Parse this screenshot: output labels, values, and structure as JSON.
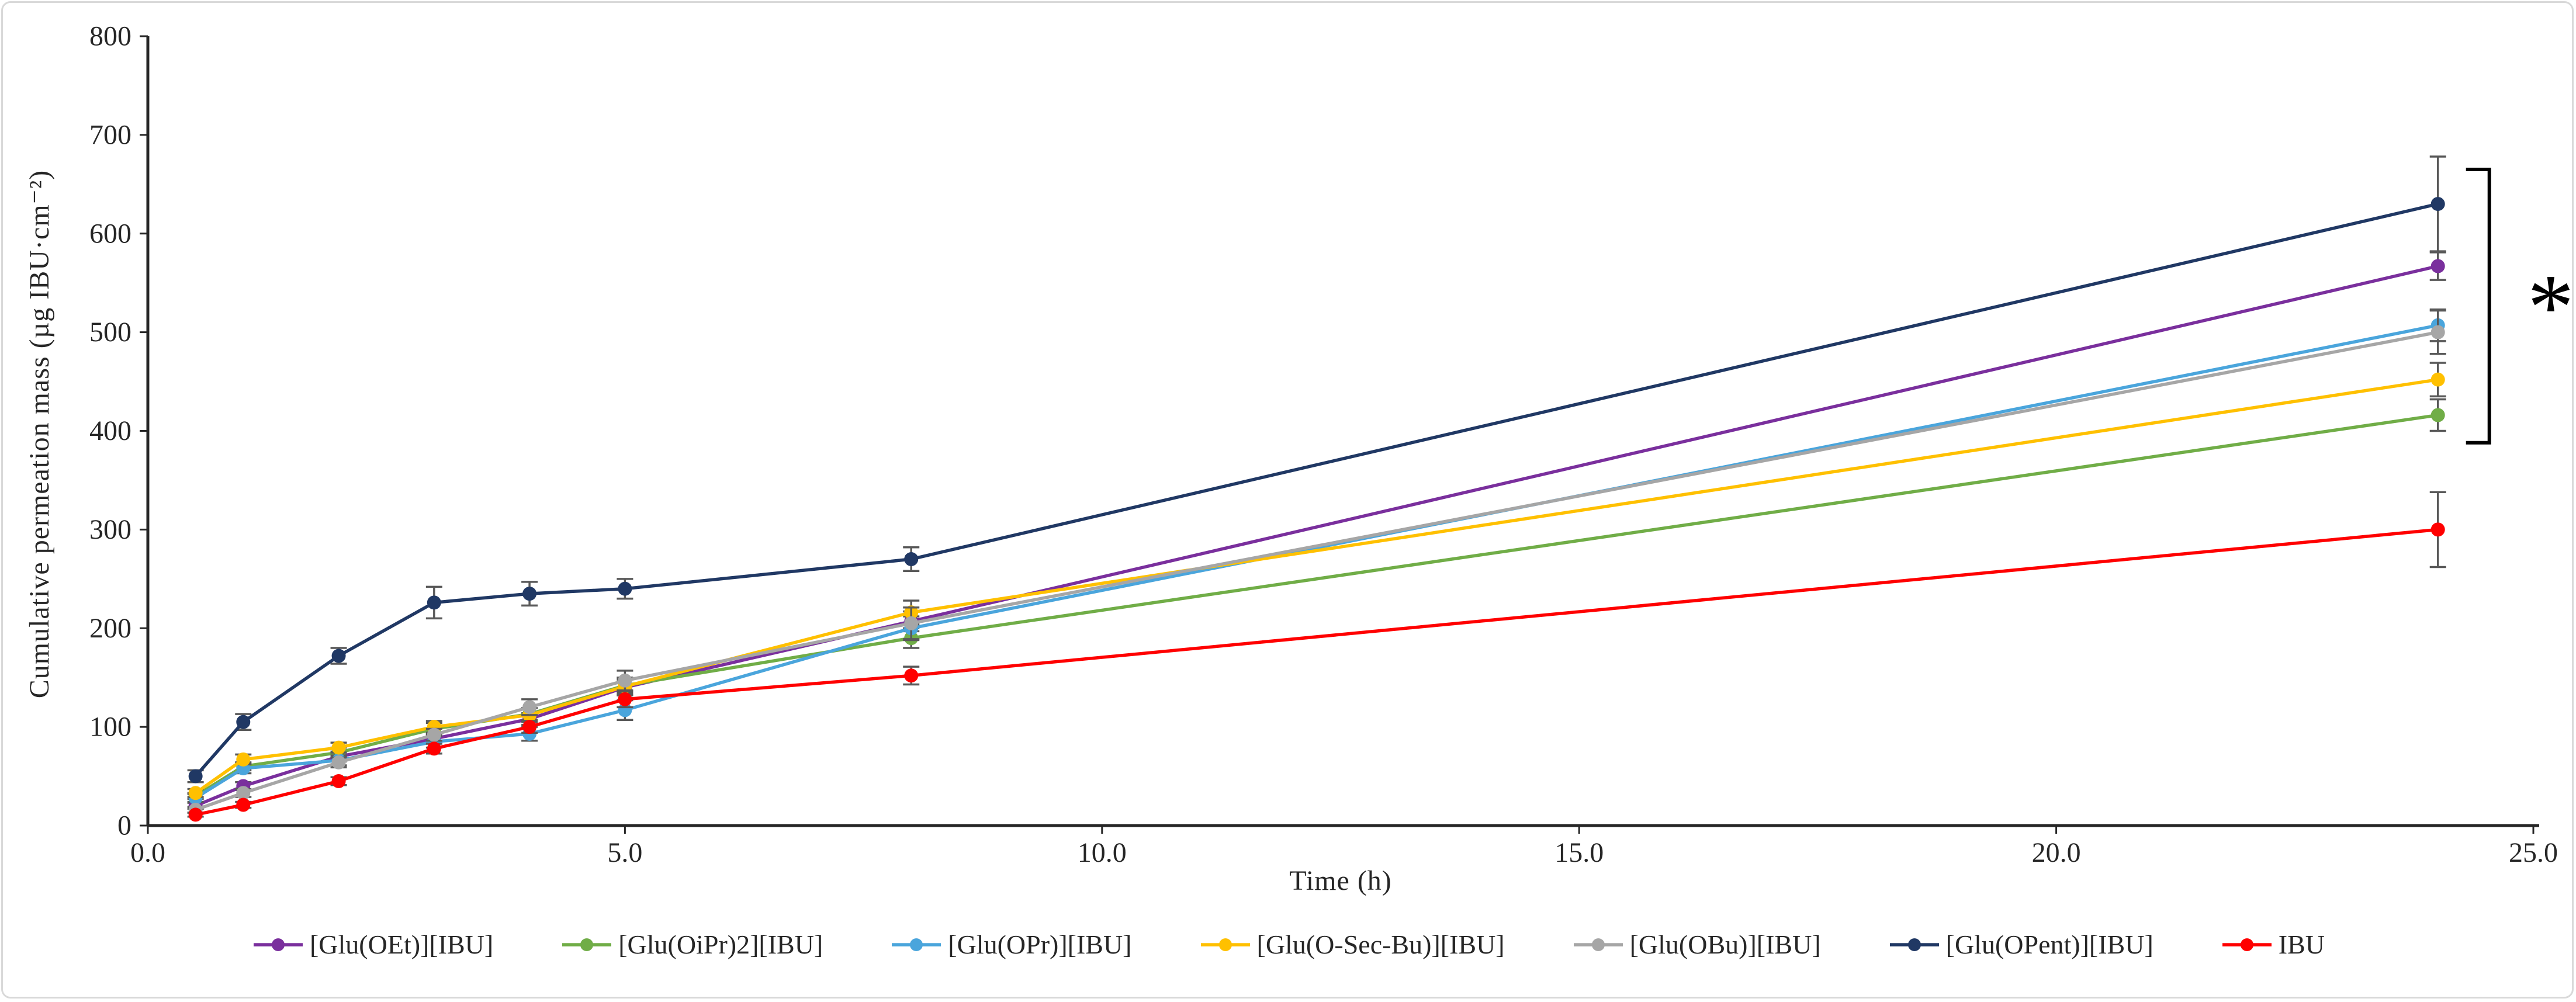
{
  "page": {
    "background": "#ffffff",
    "border_color": "#d9d9d9"
  },
  "chart_data": {
    "type": "line",
    "title": "",
    "xlabel": "Time (h)",
    "ylabel": "Cumulative permeation mass (µg IBU·cm⁻²)",
    "xlim": [
      0,
      25
    ],
    "ylim": [
      0,
      800
    ],
    "grid": false,
    "legend_position": "bottom",
    "x_tick_labels": [
      "0.0",
      "5.0",
      "10.0",
      "15.0",
      "20.0",
      "25.0"
    ],
    "x_tick_values": [
      0,
      5,
      10,
      15,
      20,
      25
    ],
    "y_tick_labels": [
      "0",
      "100",
      "200",
      "300",
      "400",
      "500",
      "600",
      "700",
      "800"
    ],
    "y_tick_values": [
      0,
      100,
      200,
      300,
      400,
      500,
      600,
      700,
      800
    ],
    "x": [
      0.5,
      1,
      2,
      3,
      4,
      5,
      8,
      24
    ],
    "series": [
      {
        "name": "[Glu(OEt)][IBU]",
        "color": "#7A2F9D",
        "values": [
          20,
          40,
          70,
          88,
          108,
          140,
          207,
          567
        ],
        "errors": [
          3,
          4,
          5,
          5,
          6,
          8,
          10,
          14
        ]
      },
      {
        "name": "[Glu(OiPr)2][IBU]",
        "color": "#70AD47",
        "values": [
          30,
          60,
          74,
          98,
          113,
          142,
          190,
          416
        ],
        "errors": [
          3,
          4,
          5,
          6,
          6,
          8,
          10,
          16
        ]
      },
      {
        "name": "[Glu(OPr)][IBU]",
        "color": "#4AA5DC",
        "values": [
          28,
          58,
          66,
          85,
          93,
          117,
          200,
          507
        ],
        "errors": [
          4,
          5,
          5,
          6,
          7,
          10,
          12,
          16
        ]
      },
      {
        "name": "[Glu(O-Sec-Bu)][IBU]",
        "color": "#FFC000",
        "values": [
          33,
          67,
          79,
          100,
          112,
          141,
          216,
          452
        ],
        "errors": [
          4,
          5,
          5,
          6,
          7,
          9,
          12,
          17
        ]
      },
      {
        "name": "[Glu(OBu)][IBU]",
        "color": "#A6A6A6",
        "values": [
          16,
          33,
          64,
          92,
          120,
          147,
          205,
          500
        ],
        "errors": [
          3,
          4,
          5,
          6,
          8,
          10,
          16,
          22
        ]
      },
      {
        "name": "[Glu(OPent)][IBU]",
        "color": "#203864",
        "values": [
          50,
          105,
          172,
          226,
          235,
          240,
          270,
          630
        ],
        "errors": [
          6,
          8,
          8,
          16,
          12,
          10,
          12,
          48
        ]
      },
      {
        "name": "IBU",
        "color": "#FF0000",
        "values": [
          11,
          21,
          45,
          78,
          100,
          128,
          152,
          300
        ],
        "errors": [
          2,
          3,
          4,
          5,
          6,
          8,
          9,
          38
        ]
      }
    ],
    "error_bar_color": "#595959",
    "axis_color": "#262626",
    "annotation": {
      "significance_symbol": "*",
      "bracket": {
        "at_x": 24,
        "y_top": 665,
        "y_bottom": 388
      }
    }
  }
}
